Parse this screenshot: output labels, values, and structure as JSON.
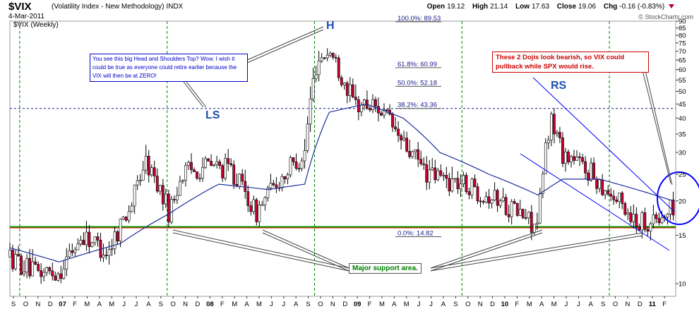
{
  "header": {
    "symbol": "$VIX",
    "name": "(Volatility Index - New Methodology)",
    "exchange": "INDX",
    "date": "4-Mar-2011",
    "open_label": "Open",
    "open": "19.12",
    "high_label": "High",
    "high": "21.14",
    "low_label": "Low",
    "low": "17.63",
    "close_label": "Close",
    "close": "19.06",
    "chg_label": "Chg",
    "chg": "-0.16 (-0.83%)",
    "brand": "© StockCharts.com"
  },
  "plot_label": "$VIX (Weekly)",
  "annotations": {
    "blue_note": "You see this big Head and Shoulders Top? Wow. I wish it could be true as everyone could retire earlier because the VIX will then be at ZERO!",
    "red_note": "These 2 Dojis look bearish, so VIX could pullback while SPX would rise.",
    "green_note": "Major support area.",
    "ls": "LS",
    "h": "H",
    "rs": "RS"
  },
  "colors": {
    "up_candle": "#ffffff",
    "down_candle": "#cc0033",
    "ma_line": "#1f2f9a",
    "support_red": "#ff0000",
    "support_green": "#00a000",
    "fib_dashed": "#1a1a8a",
    "year_divider": "#008000",
    "trendline": "#0000ff"
  },
  "chart_data": {
    "type": "candlestick",
    "title": "$VIX (Volatility Index - New Methodology)",
    "ylabel": "",
    "y_scale": "log",
    "ylim": [
      9,
      90
    ],
    "y_ticks": [
      10,
      15,
      20,
      25,
      30,
      35,
      40,
      45,
      50,
      55,
      60,
      65,
      70,
      75,
      80,
      85,
      90
    ],
    "x_range": [
      "2006-09",
      "2011-03"
    ],
    "x_month_labels": [
      "S",
      "O",
      "N",
      "D",
      "07",
      "F",
      "M",
      "A",
      "M",
      "J",
      "J",
      "A",
      "S",
      "O",
      "N",
      "D",
      "08",
      "F",
      "M",
      "A",
      "M",
      "J",
      "J",
      "A",
      "S",
      "O",
      "N",
      "D",
      "09",
      "F",
      "M",
      "A",
      "M",
      "J",
      "J",
      "A",
      "S",
      "O",
      "N",
      "D",
      "10",
      "F",
      "M",
      "A",
      "M",
      "J",
      "J",
      "A",
      "S",
      "O",
      "N",
      "D",
      "11",
      "F"
    ],
    "year_dividers": [
      "2007-01",
      "2008-01",
      "2009-01",
      "2010-01",
      "2011-01"
    ],
    "horizontal_lines": [
      {
        "name": "red_support",
        "value": 16.0
      },
      {
        "name": "green_support",
        "value": 16.1
      },
      {
        "name": "fib_38.2_dashed",
        "value": 43.36
      }
    ],
    "fibonacci": [
      {
        "label": "100.0%: 89.53",
        "value": 89.53
      },
      {
        "label": "61.8%: 60.99",
        "value": 60.99
      },
      {
        "label": "50.0%: 52.18",
        "value": 52.18
      },
      {
        "label": "38.2%: 43.36",
        "value": 43.36
      },
      {
        "label": "0.0%: 14.82",
        "value": 14.82
      }
    ],
    "series": [
      {
        "name": "weekly_close_approx",
        "anchors": [
          [
            "2006-09",
            12.5
          ],
          [
            "2006-11",
            11
          ],
          [
            "2007-01",
            11
          ],
          [
            "2007-03",
            15
          ],
          [
            "2007-05",
            13
          ],
          [
            "2007-07",
            20
          ],
          [
            "2007-08",
            28
          ],
          [
            "2007-10",
            18
          ],
          [
            "2007-11",
            25
          ],
          [
            "2008-01",
            27
          ],
          [
            "2008-03",
            26
          ],
          [
            "2008-05",
            18
          ],
          [
            "2008-07",
            24
          ],
          [
            "2008-09",
            30
          ],
          [
            "2008-10",
            65
          ],
          [
            "2008-11",
            70
          ],
          [
            "2009-01",
            45
          ],
          [
            "2009-03",
            44
          ],
          [
            "2009-05",
            32
          ],
          [
            "2009-07",
            25
          ],
          [
            "2009-10",
            23
          ],
          [
            "2010-01",
            20
          ],
          [
            "2010-04",
            16
          ],
          [
            "2010-05",
            40
          ],
          [
            "2010-06",
            30
          ],
          [
            "2010-08",
            26
          ],
          [
            "2010-10",
            21
          ],
          [
            "2010-12",
            17
          ],
          [
            "2011-02",
            17
          ],
          [
            "2011-03",
            19.06
          ]
        ]
      },
      {
        "name": "moving_average",
        "anchors": [
          [
            "2006-09",
            13.5
          ],
          [
            "2007-01",
            12
          ],
          [
            "2007-06",
            14
          ],
          [
            "2007-10",
            18
          ],
          [
            "2008-02",
            23
          ],
          [
            "2008-06",
            22
          ],
          [
            "2008-09",
            23
          ],
          [
            "2008-11",
            42
          ],
          [
            "2009-02",
            45
          ],
          [
            "2009-05",
            40
          ],
          [
            "2009-08",
            30
          ],
          [
            "2009-12",
            25
          ],
          [
            "2010-04",
            21
          ],
          [
            "2010-06",
            24
          ],
          [
            "2010-09",
            24
          ],
          [
            "2010-12",
            22
          ],
          [
            "2011-03",
            20
          ]
        ]
      }
    ]
  }
}
